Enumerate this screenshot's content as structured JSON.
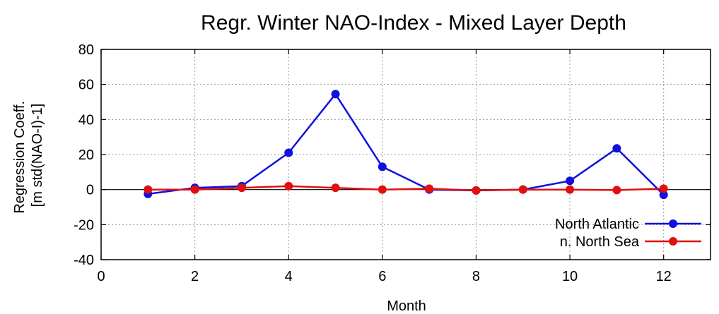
{
  "chart_data": {
    "type": "line",
    "title": "Regr. Winter NAO-Index - Mixed Layer Depth",
    "xlabel": "Month",
    "ylabel_lines": [
      "Regression Coeff.",
      "[m std(NAO-I)-1]"
    ],
    "xlim": [
      0,
      13
    ],
    "ylim": [
      -40,
      80
    ],
    "x_ticks": [
      0,
      2,
      4,
      6,
      8,
      10,
      12
    ],
    "y_ticks": [
      -40,
      -20,
      0,
      20,
      40,
      60,
      80
    ],
    "grid": true,
    "legend_position": "bottom-right",
    "x": [
      1,
      2,
      3,
      4,
      5,
      6,
      7,
      8,
      9,
      10,
      11,
      12
    ],
    "series": [
      {
        "name": "North Atlantic",
        "color": "#1010e0",
        "values": [
          -2.5,
          1.0,
          2.0,
          21.0,
          54.5,
          13.0,
          0.0,
          -0.5,
          0.0,
          5.0,
          23.5,
          -3.0
        ]
      },
      {
        "name": "n. North Sea",
        "color": "#e01010",
        "values": [
          0.0,
          0.0,
          1.0,
          2.0,
          1.0,
          0.0,
          0.5,
          -0.5,
          0.0,
          0.0,
          -0.3,
          0.5
        ]
      }
    ]
  }
}
